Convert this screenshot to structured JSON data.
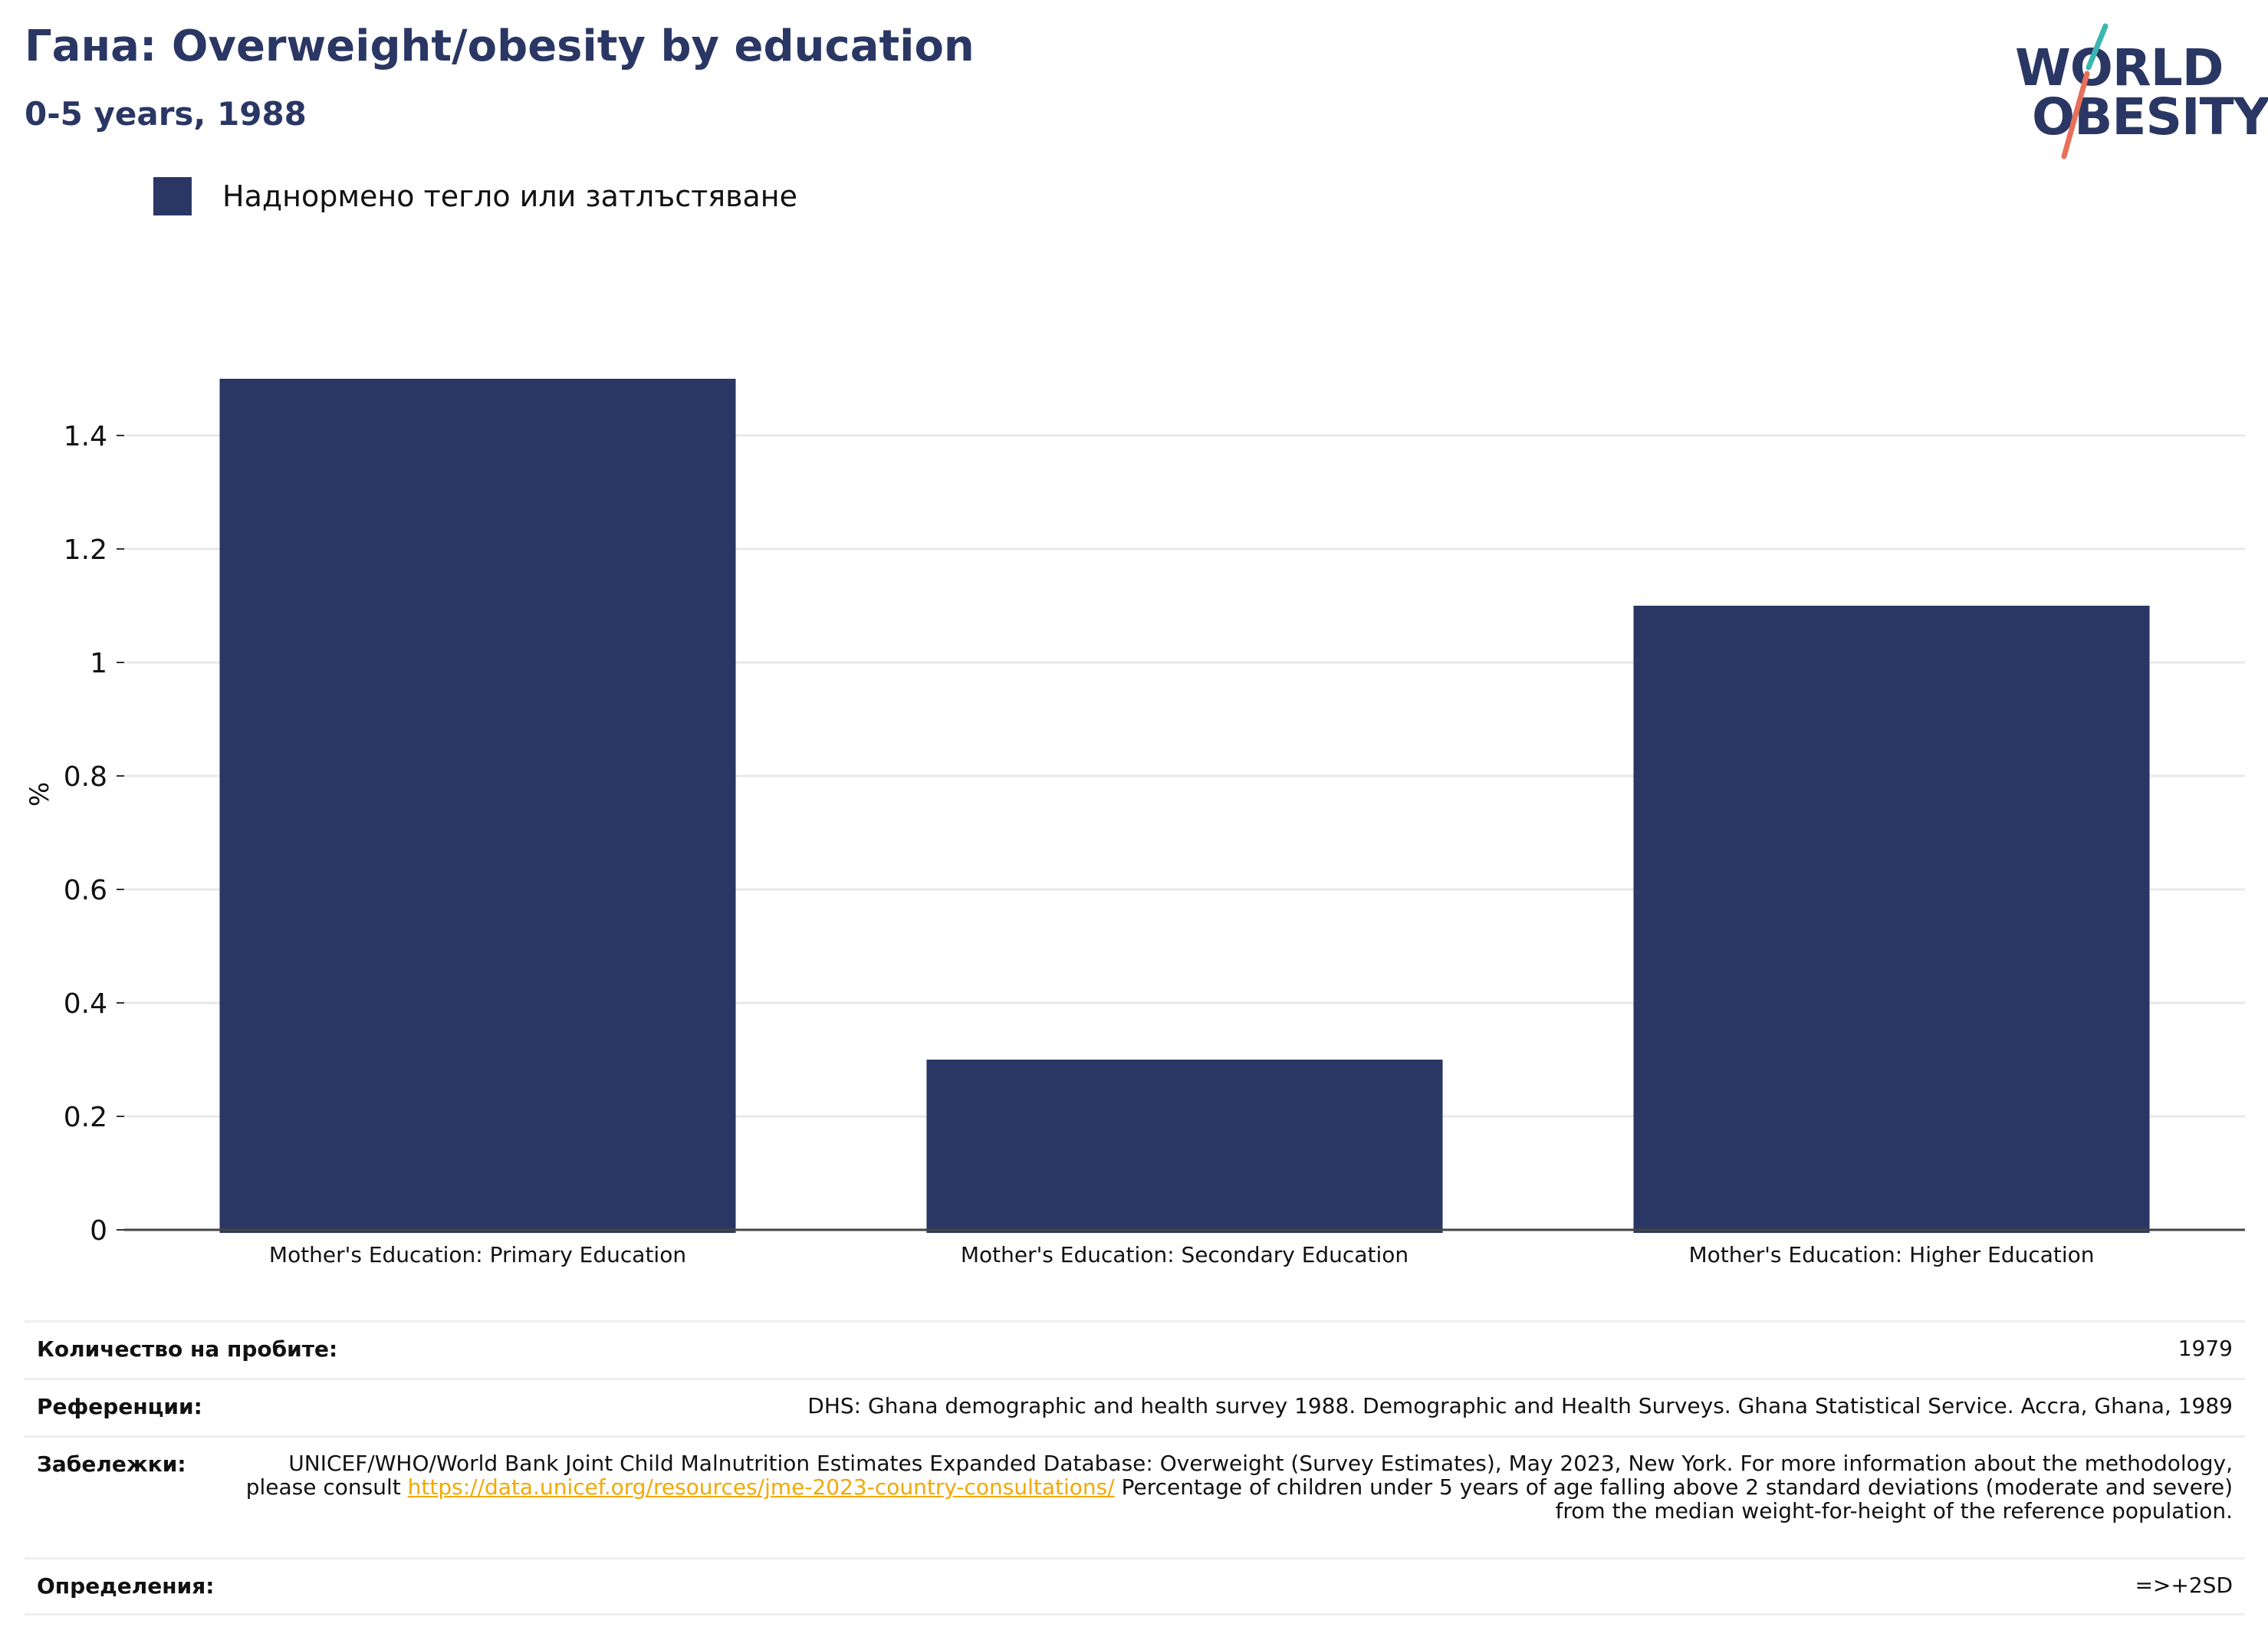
{
  "header": {
    "title": "Гана: Overweight/obesity by education",
    "subtitle": "0-5 years, 1988"
  },
  "logo": {
    "line1": "WORLD",
    "line2": "OBESITY",
    "colors": {
      "text": "#2a3764",
      "slash_top": "#3bb6b0",
      "slash_bottom": "#e8705a"
    }
  },
  "legend": {
    "items": [
      {
        "label": "Наднормено тегло или затлъстяване",
        "color": "#2a3764"
      }
    ]
  },
  "chart_data": {
    "type": "bar",
    "categories": [
      "Mother's Education: Primary Education",
      "Mother's Education: Secondary Education",
      "Mother's Education: Higher Education"
    ],
    "series": [
      {
        "name": "Наднормено тегло или затлъстяване",
        "values": [
          1.5,
          0.3,
          1.1
        ]
      }
    ],
    "title": "Гана: Overweight/obesity by education",
    "subtitle": "0-5 years, 1988",
    "xlabel": "",
    "ylabel": "%",
    "ylim": [
      0,
      1.5
    ],
    "yticks": [
      0,
      0.2,
      0.4,
      0.6,
      0.8,
      1,
      1.2,
      1.4
    ],
    "ytick_labels": [
      "0",
      "0.2",
      "0.4",
      "0.6",
      "0.8",
      "1",
      "1.2",
      "1.4"
    ],
    "grid": true,
    "legend_position": "top-left",
    "bar_color": "#2a3764"
  },
  "info": {
    "sample_size": {
      "label": "Количество на пробите:",
      "value": "1979"
    },
    "references": {
      "label": "Референции:",
      "value": "DHS: Ghana demographic and health survey 1988. Demographic and Health Surveys. Ghana Statistical Service. Accra, Ghana, 1989"
    },
    "notes": {
      "label": "Забележки:",
      "text_before": "UNICEF/WHO/World Bank Joint Child Malnutrition Estimates Expanded Database: Overweight (Survey Estimates), May 2023, New York. For more information about the methodology, please consult ",
      "link": "https://data.unicef.org/resources/jme-2023-country-consultations/",
      "text_after": " Percentage of children under 5 years of age falling above 2 standard deviations (moderate and severe) from the median weight-for-height of the reference population."
    },
    "definitions": {
      "label": "Определения:",
      "value": "=>+2SD"
    }
  }
}
